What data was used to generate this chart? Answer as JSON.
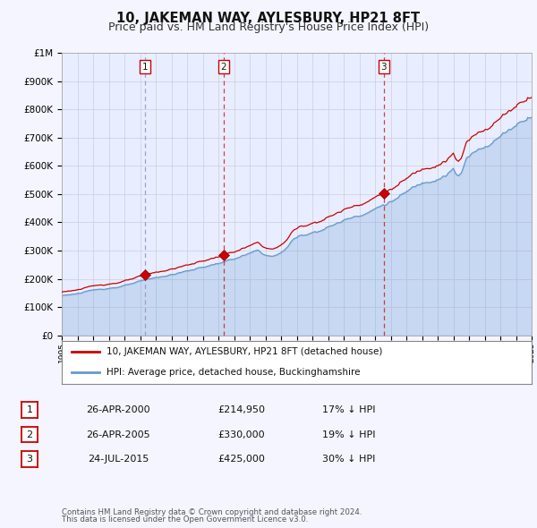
{
  "title": "10, JAKEMAN WAY, AYLESBURY, HP21 8FT",
  "subtitle": "Price paid vs. HM Land Registry's House Price Index (HPI)",
  "xlim": [
    1995,
    2025
  ],
  "ylim": [
    0,
    1000000
  ],
  "yticks": [
    0,
    100000,
    200000,
    300000,
    400000,
    500000,
    600000,
    700000,
    800000,
    900000,
    1000000
  ],
  "ytick_labels": [
    "£0",
    "£100K",
    "£200K",
    "£300K",
    "£400K",
    "£500K",
    "£600K",
    "£700K",
    "£800K",
    "£900K",
    "£1M"
  ],
  "xtick_years": [
    1995,
    1996,
    1997,
    1998,
    1999,
    2000,
    2001,
    2002,
    2003,
    2004,
    2005,
    2006,
    2007,
    2008,
    2009,
    2010,
    2011,
    2012,
    2013,
    2014,
    2015,
    2016,
    2017,
    2018,
    2019,
    2020,
    2021,
    2022,
    2023,
    2024,
    2025
  ],
  "sale_dates": [
    2000.32,
    2005.32,
    2015.56
  ],
  "sale_prices": [
    214950,
    330000,
    425000
  ],
  "sale_color": "#cc0000",
  "hpi_color": "#6699cc",
  "hpi_fill_alpha": 0.25,
  "vline1_color": "#aaaacc",
  "vline2_color": "#cc3333",
  "legend_label_red": "10, JAKEMAN WAY, AYLESBURY, HP21 8FT (detached house)",
  "legend_label_blue": "HPI: Average price, detached house, Buckinghamshire",
  "transaction_labels": [
    "1",
    "2",
    "3"
  ],
  "transaction_dates_str": [
    "26-APR-2000",
    "26-APR-2005",
    "24-JUL-2015"
  ],
  "transaction_prices_str": [
    "£214,950",
    "£330,000",
    "£425,000"
  ],
  "transaction_hpi_str": [
    "17% ↓ HPI",
    "19% ↓ HPI",
    "30% ↓ HPI"
  ],
  "footnote1": "Contains HM Land Registry data © Crown copyright and database right 2024.",
  "footnote2": "This data is licensed under the Open Government Licence v3.0.",
  "background_color": "#f5f5ff",
  "plot_bg_color": "#e8eeff",
  "grid_color": "#ccccdd",
  "title_fontsize": 10.5,
  "subtitle_fontsize": 9
}
